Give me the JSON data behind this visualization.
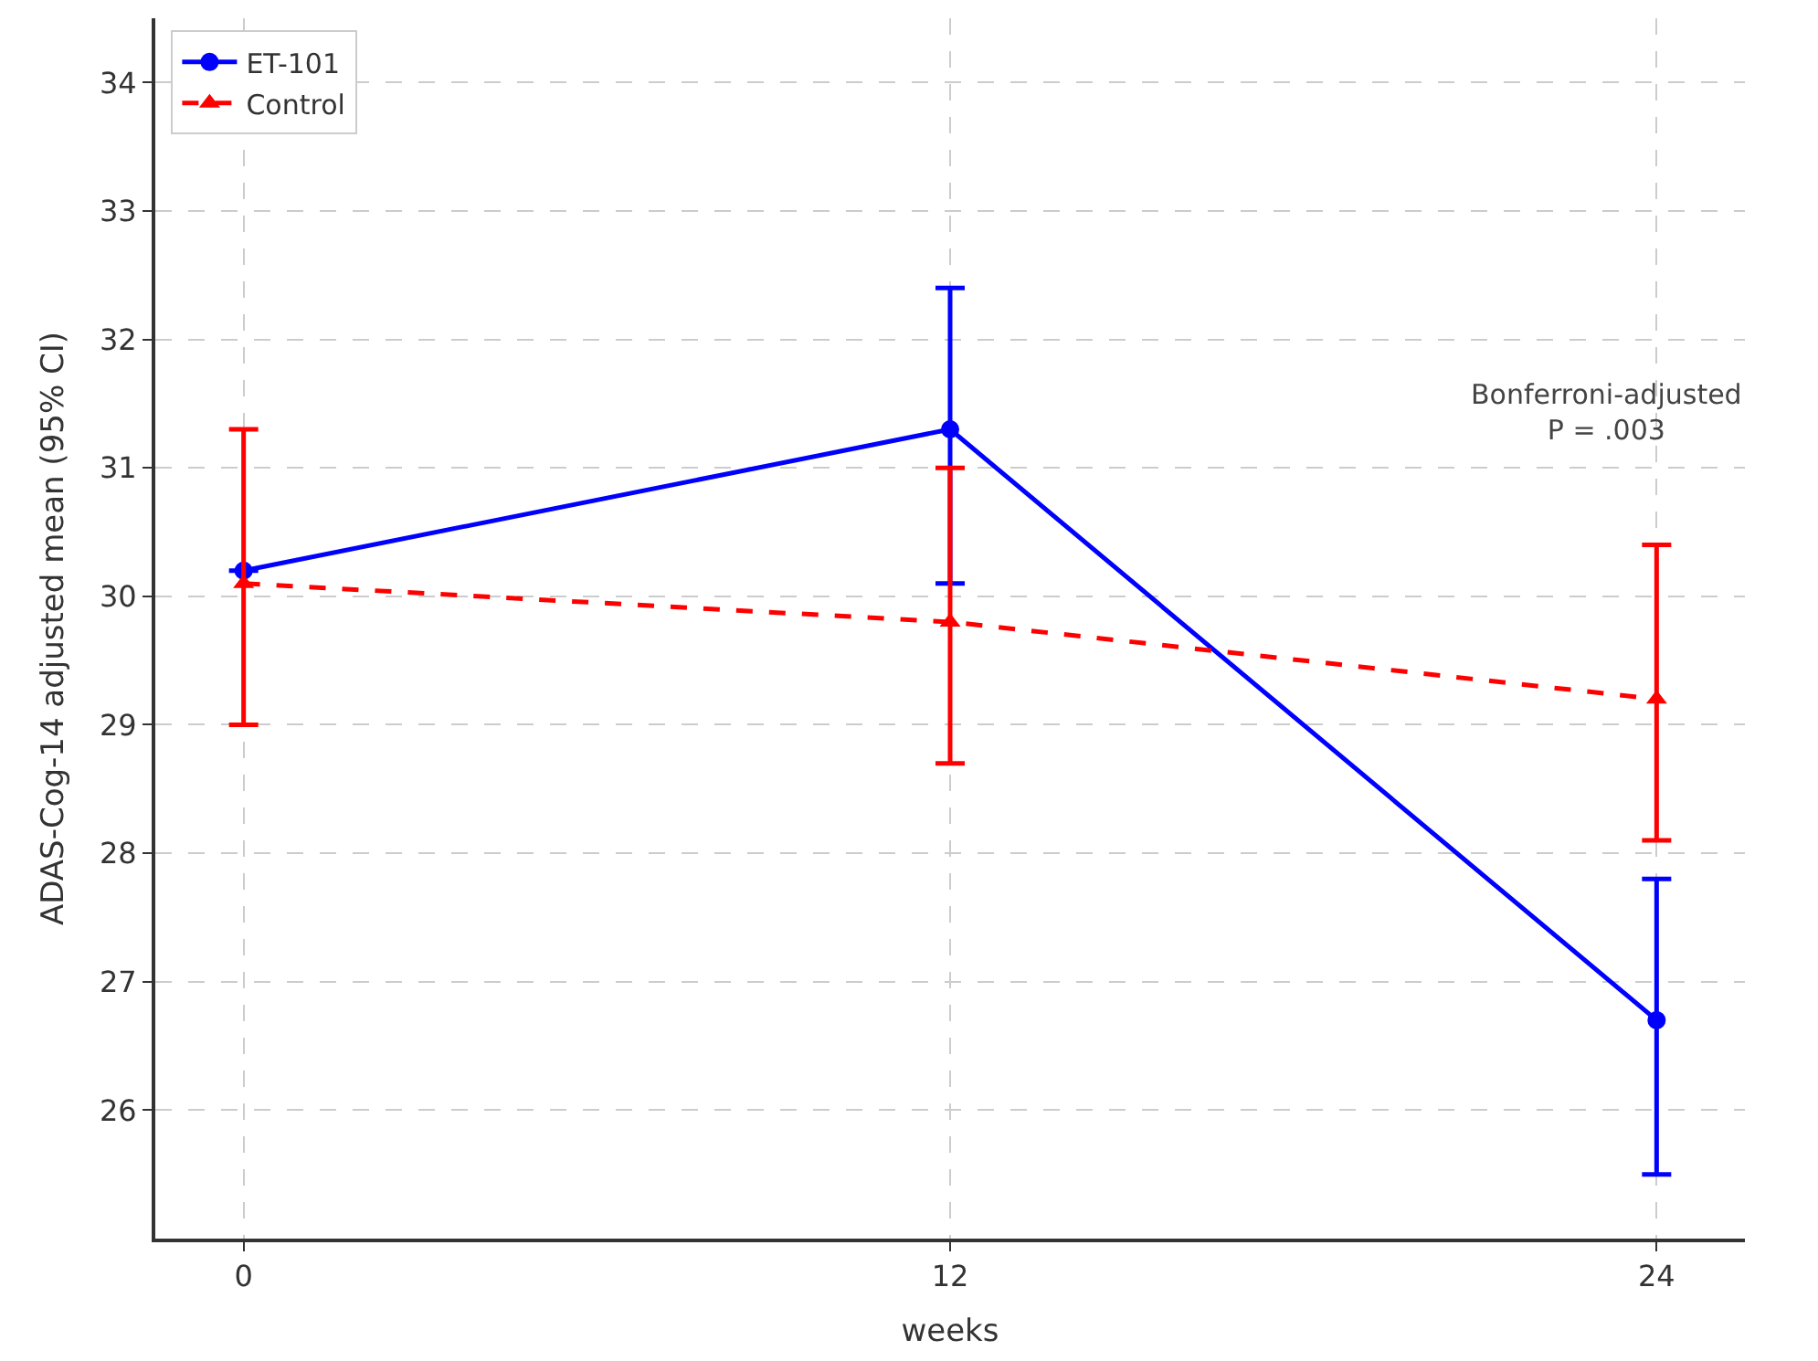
{
  "chart_data": {
    "type": "line",
    "xlabel": "weeks",
    "ylabel": "ADAS-Cog-14 adjusted mean (95% CI)",
    "x": [
      0,
      12,
      24
    ],
    "series": [
      {
        "name": "ET-101",
        "color": "#0000ff",
        "values": [
          30.2,
          31.3,
          26.7
        ],
        "errors": [
          null,
          [
            30.1,
            32.4
          ],
          [
            25.5,
            27.8
          ]
        ],
        "marker": "circle",
        "line_style": "solid"
      },
      {
        "name": "Control",
        "color": "#ff0000",
        "values": [
          30.1,
          29.8,
          29.2
        ],
        "errors": [
          [
            29.0,
            31.3
          ],
          [
            28.7,
            31.0
          ],
          [
            28.1,
            30.4
          ]
        ],
        "marker": "triangle",
        "line_style": "dashed"
      }
    ],
    "xlim": [
      -1.5,
      25.5
    ],
    "xticks": [
      0,
      12,
      24
    ],
    "ylim": [
      25.0,
      34.5
    ],
    "yticks": [
      26,
      27,
      28,
      29,
      30,
      31,
      32,
      33,
      34
    ],
    "grid": true,
    "legend": "top left",
    "annotations": [
      "Bonferroni-adjusted\nP = .003"
    ]
  }
}
